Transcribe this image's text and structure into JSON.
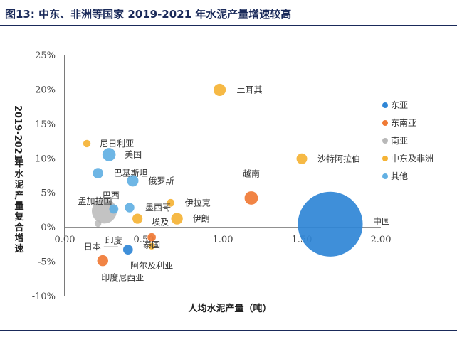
{
  "header": {
    "title": "图13:  中东、非洲等国家 2019-2021 年水泥产量增速较高"
  },
  "colors": {
    "东亚": "#2f86d6",
    "东南亚": "#f07a35",
    "南亚": "#b8b8b8",
    "中东及非洲": "#f5b335",
    "其他": "#62b0e3"
  },
  "chart_data": {
    "type": "scatter",
    "xlabel": "人均水泥产量（吨）",
    "ylabel": "2019-2021年水泥产量复合增速",
    "xlim": [
      0,
      2.0
    ],
    "ylim": [
      -10,
      25
    ],
    "x_ticks": [
      "0.00",
      "0.50",
      "1.00",
      "1.50",
      "2.00"
    ],
    "y_ticks": [
      "25%",
      "20%",
      "15%",
      "10%",
      "5%",
      "0%",
      "-5%",
      "-10%"
    ],
    "grid": false,
    "legend_position": "right",
    "legend": [
      "东亚",
      "东南亚",
      "南亚",
      "中东及非洲",
      "其他"
    ],
    "points": [
      {
        "name": "中国",
        "group": "东亚",
        "x": 1.68,
        "y": 0.5,
        "size": 2300
      },
      {
        "name": "日本",
        "group": "东亚",
        "x": 0.4,
        "y": -3.2,
        "size": 52
      },
      {
        "name": "越南",
        "group": "东南亚",
        "x": 1.18,
        "y": 4.3,
        "size": 98
      },
      {
        "name": "印度尼西亚",
        "group": "东南亚",
        "x": 0.24,
        "y": -4.8,
        "size": 66
      },
      {
        "name": "泰国",
        "group": "东南亚",
        "x": 0.55,
        "y": -1.4,
        "size": 38
      },
      {
        "name": "印度",
        "group": "南亚",
        "x": 0.21,
        "y": 0.6,
        "size": 25
      },
      {
        "name": "孟加拉国",
        "group": "南亚",
        "x": 0.25,
        "y": 2.4,
        "size": 340
      },
      {
        "name": "土耳其",
        "group": "中东及非洲",
        "x": 0.98,
        "y": 20.0,
        "size": 82
      },
      {
        "name": "沙特阿拉伯",
        "group": "中东及非洲",
        "x": 1.5,
        "y": 10.0,
        "size": 62
      },
      {
        "name": "尼日利亚",
        "group": "中东及非洲",
        "x": 0.14,
        "y": 12.2,
        "size": 30
      },
      {
        "name": "伊拉克",
        "group": "中东及非洲",
        "x": 0.67,
        "y": 3.6,
        "size": 32
      },
      {
        "name": "伊朗",
        "group": "中东及非洲",
        "x": 0.71,
        "y": 1.3,
        "size": 74
      },
      {
        "name": "埃及",
        "group": "中东及非洲",
        "x": 0.46,
        "y": 1.3,
        "size": 56
      },
      {
        "name": "阿尔及利亚",
        "group": "中东及非洲",
        "x": 0.55,
        "y": -2.7,
        "size": 25
      },
      {
        "name": "美国",
        "group": "其他",
        "x": 0.28,
        "y": 10.6,
        "size": 96
      },
      {
        "name": "巴基斯坦",
        "group": "其他",
        "x": 0.21,
        "y": 7.9,
        "size": 60
      },
      {
        "name": "俄罗斯",
        "group": "其他",
        "x": 0.43,
        "y": 6.8,
        "size": 72
      },
      {
        "name": "巴西",
        "group": "其他",
        "x": 0.31,
        "y": 2.7,
        "size": 46
      },
      {
        "name": "墨西哥",
        "group": "其他",
        "x": 0.41,
        "y": 2.9,
        "size": 50
      }
    ]
  }
}
